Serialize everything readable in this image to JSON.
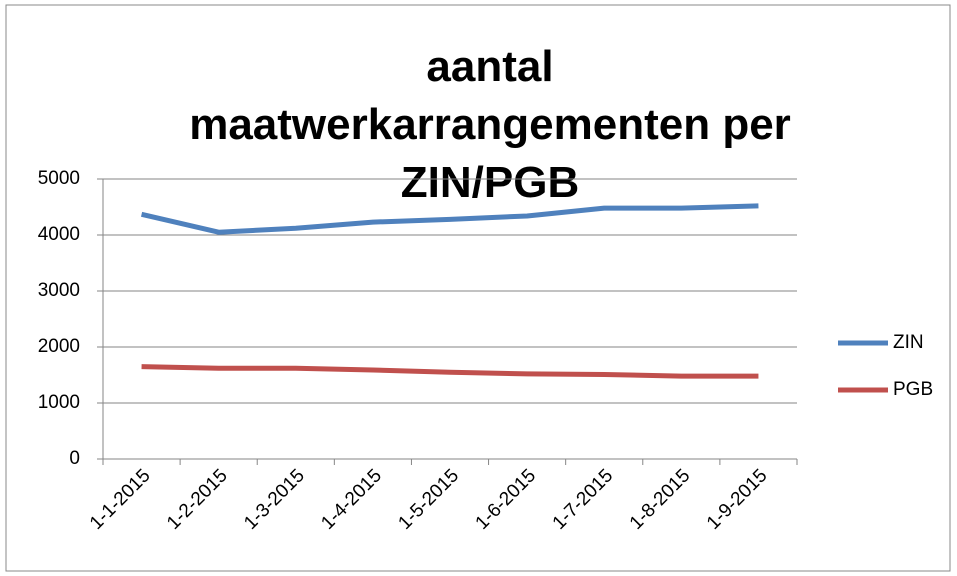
{
  "chart_data": {
    "type": "line",
    "title": "aantal maatwerkarrangementen per ZIN/PGB",
    "categories": [
      "1-1-2015",
      "1-2-2015",
      "1-3-2015",
      "1-4-2015",
      "1-5-2015",
      "1-6-2015",
      "1-7-2015",
      "1-8-2015",
      "1-9-2015"
    ],
    "series": [
      {
        "name": "ZIN",
        "color": "#4f81bd",
        "values": [
          4370,
          4050,
          4120,
          4230,
          4280,
          4340,
          4480,
          4480,
          4520
        ]
      },
      {
        "name": "PGB",
        "color": "#c0504d",
        "values": [
          1650,
          1620,
          1620,
          1590,
          1550,
          1520,
          1510,
          1480,
          1480
        ]
      }
    ],
    "ylim": [
      0,
      5000
    ],
    "yticks": [
      0,
      1000,
      2000,
      3000,
      4000,
      5000
    ],
    "grid": true,
    "legend": "right"
  }
}
